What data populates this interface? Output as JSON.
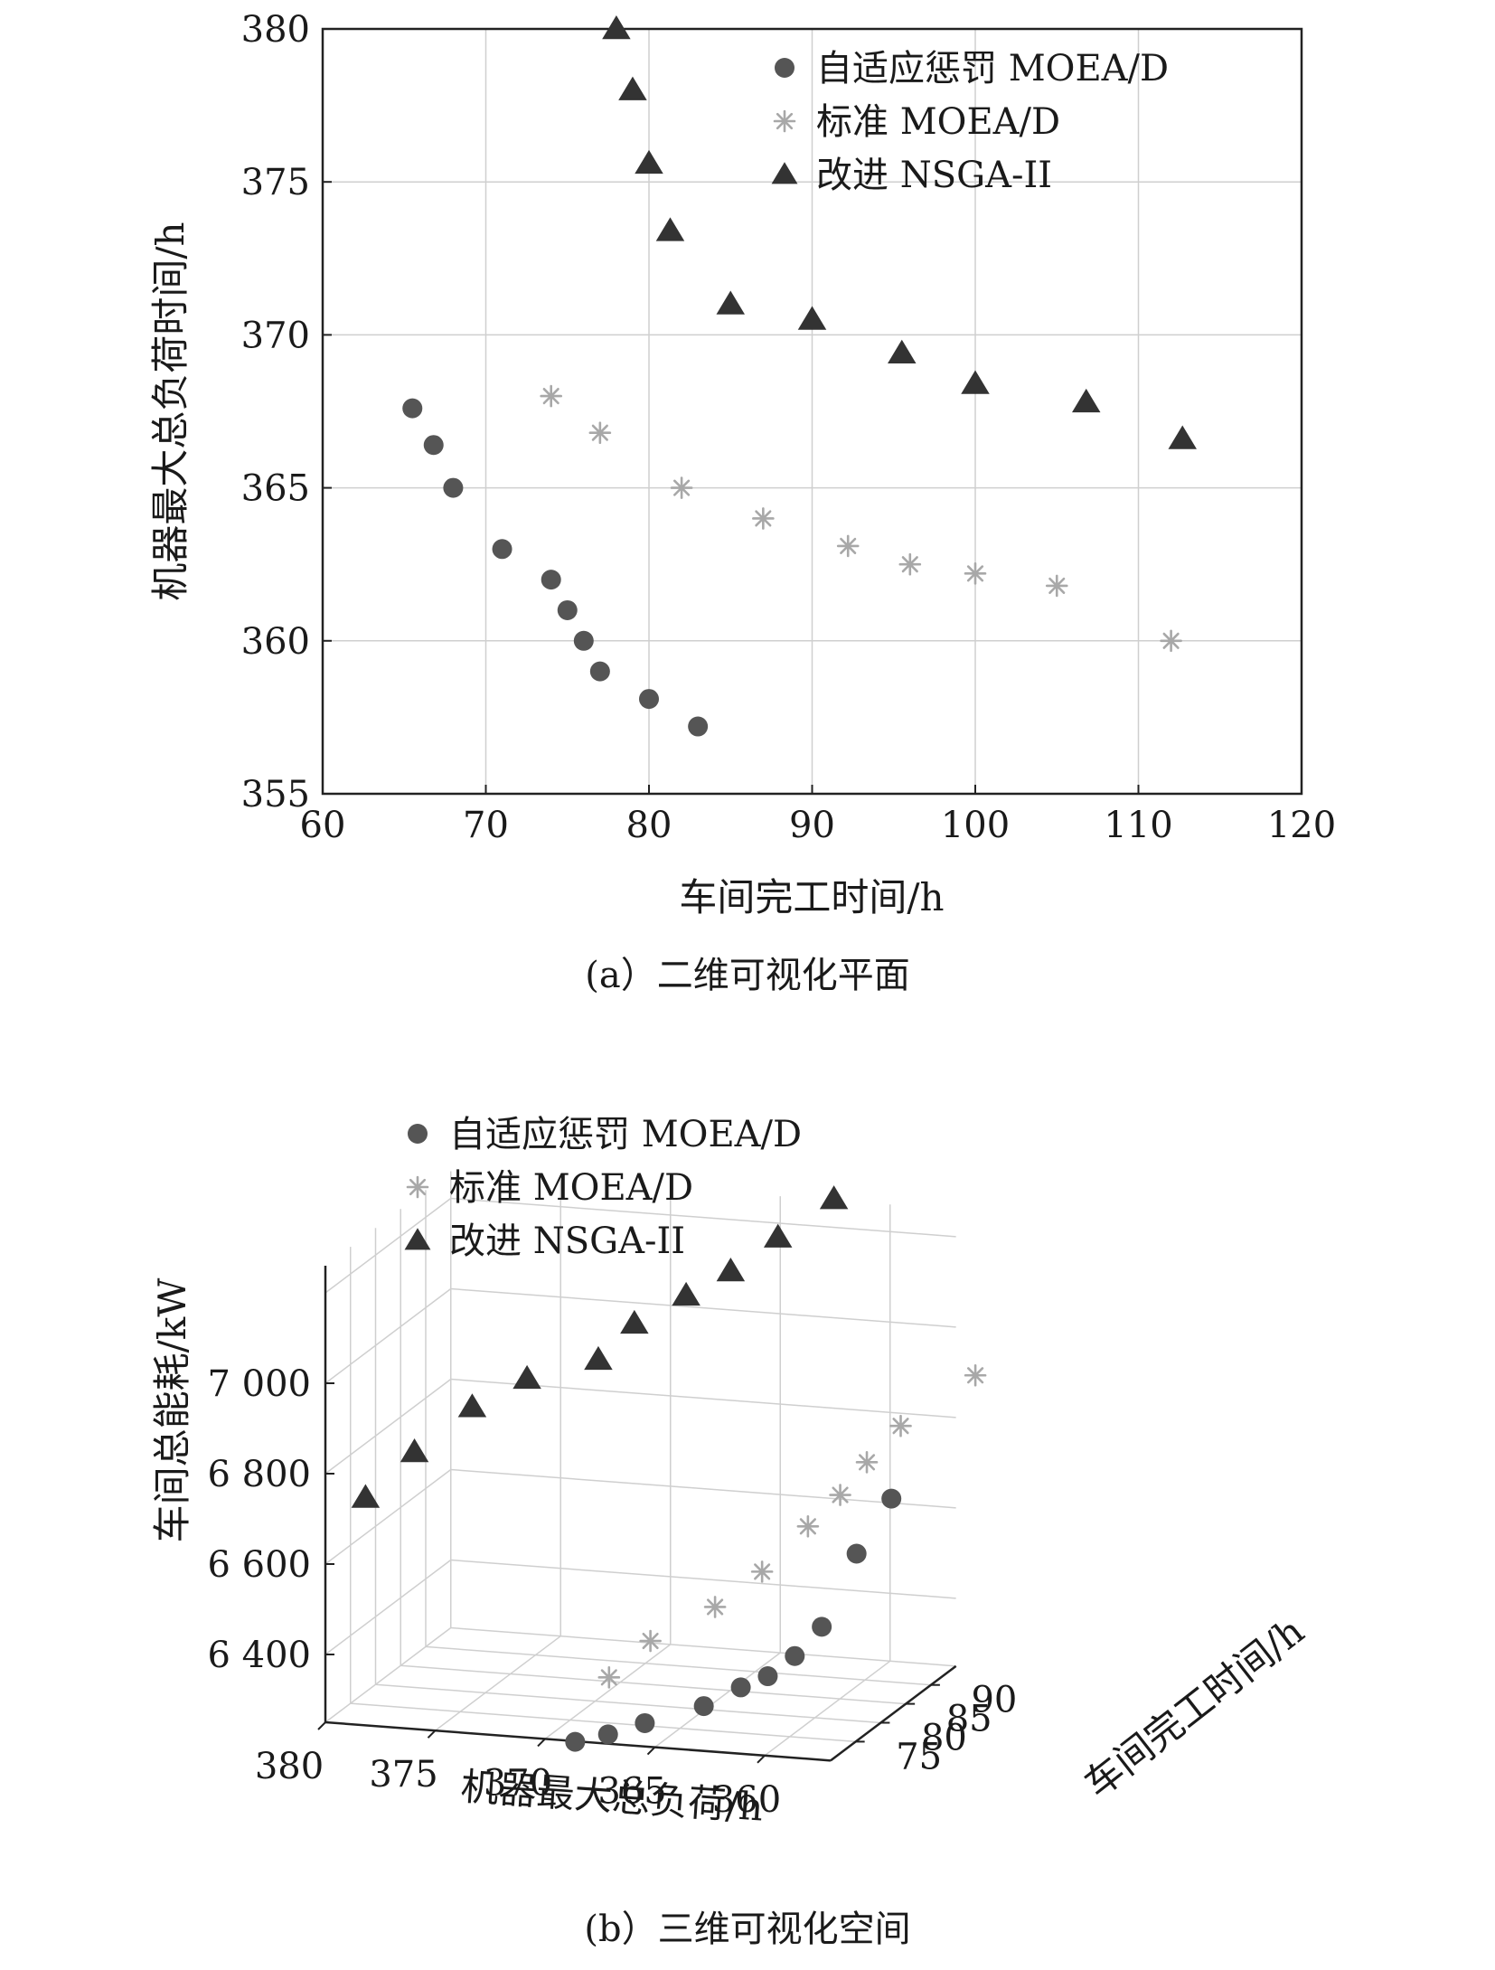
{
  "charts": {
    "a": {
      "caption": "(a）二维可视化平面"
    },
    "b": {
      "caption": "(b）三维可视化空间"
    }
  },
  "chart_data": [
    {
      "type": "scatter",
      "title": "",
      "xlabel": "车间完工时间/h",
      "ylabel": "机器最大总负荷时间/h",
      "xlim": [
        60,
        120
      ],
      "ylim": [
        355,
        380
      ],
      "xticks": [
        60,
        70,
        80,
        90,
        100,
        110,
        120
      ],
      "yticks": [
        355,
        360,
        365,
        370,
        375,
        380
      ],
      "grid": true,
      "legend_position": "top-right",
      "series": [
        {
          "name": "自适应惩罚 MOEA/D",
          "marker": "circle",
          "color": "#555555",
          "points": [
            [
              65.5,
              367.6
            ],
            [
              66.8,
              366.4
            ],
            [
              68,
              365
            ],
            [
              71,
              363
            ],
            [
              74,
              362
            ],
            [
              75,
              361
            ],
            [
              76,
              360
            ],
            [
              77,
              359
            ],
            [
              80,
              358.1
            ],
            [
              83,
              357.2
            ]
          ]
        },
        {
          "name": "标准 MOEA/D",
          "marker": "asterisk",
          "color": "#a8a8a8",
          "points": [
            [
              74,
              368
            ],
            [
              77,
              366.8
            ],
            [
              82,
              365
            ],
            [
              87,
              364
            ],
            [
              92.2,
              363.1
            ],
            [
              96,
              362.5
            ],
            [
              100,
              362.2
            ],
            [
              105,
              361.8
            ],
            [
              112,
              360
            ]
          ]
        },
        {
          "name": "改进 NSGA-II",
          "marker": "triangle",
          "color": "#333333",
          "points": [
            [
              78,
              380
            ],
            [
              79,
              378
            ],
            [
              80,
              375.6
            ],
            [
              81.3,
              373.4
            ],
            [
              85,
              371
            ],
            [
              90,
              370.5
            ],
            [
              95.5,
              369.4
            ],
            [
              100,
              368.4
            ],
            [
              106.8,
              367.8
            ],
            [
              112.7,
              366.6
            ]
          ]
        }
      ]
    },
    {
      "type": "scatter3d",
      "title": "",
      "xlabel": "机器最大总负荷/h",
      "ylabel": "车间完工时间/h",
      "zlabel": "车间总能耗/kW",
      "x_ticks": [
        "380",
        "375",
        "370",
        "365",
        "360"
      ],
      "y_ticks": [
        "75",
        "80",
        "85",
        "90"
      ],
      "z_ticks": [
        "6 400",
        "6 600",
        "6 800",
        "7 000"
      ],
      "grid": true,
      "legend_position": "top-left",
      "series": [
        {
          "name": "自适应惩罚 MOEA/D",
          "marker": "circle",
          "color": "#555555",
          "points": [
            [
              367.6,
              65.5,
              6290
            ],
            [
              366.4,
              66.8,
              6300
            ],
            [
              365,
              68,
              6320
            ],
            [
              363,
              71,
              6340
            ],
            [
              362,
              74,
              6360
            ],
            [
              361,
              75,
              6380
            ],
            [
              360,
              76,
              6420
            ],
            [
              359,
              77,
              6480
            ],
            [
              358.1,
              80,
              6620
            ],
            [
              357.2,
              83,
              6720
            ]
          ]
        },
        {
          "name": "标准 MOEA/D",
          "marker": "asterisk",
          "color": "#a8a8a8",
          "points": [
            [
              368,
              74,
              6360
            ],
            [
              366.8,
              77,
              6420
            ],
            [
              365,
              82,
              6460
            ],
            [
              364,
              87,
              6500
            ],
            [
              363.1,
              92.2,
              6560
            ],
            [
              362.5,
              96,
              6600
            ],
            [
              362.2,
              100,
              6640
            ],
            [
              361.8,
              105,
              6680
            ],
            [
              360,
              112,
              6740
            ]
          ]
        },
        {
          "name": "改进 NSGA-II",
          "marker": "triangle",
          "color": "#333333",
          "points": [
            [
              380,
              78,
              6680
            ],
            [
              378,
              79,
              6780
            ],
            [
              375.6,
              80,
              6880
            ],
            [
              373.4,
              81.3,
              6940
            ],
            [
              371,
              85,
              6960
            ],
            [
              370.5,
              90,
              7000
            ],
            [
              369.4,
              95.5,
              7020
            ],
            [
              368.4,
              100,
              7040
            ],
            [
              367.8,
              106.8,
              7060
            ],
            [
              366.6,
              112.7,
              7100
            ]
          ]
        }
      ]
    }
  ]
}
